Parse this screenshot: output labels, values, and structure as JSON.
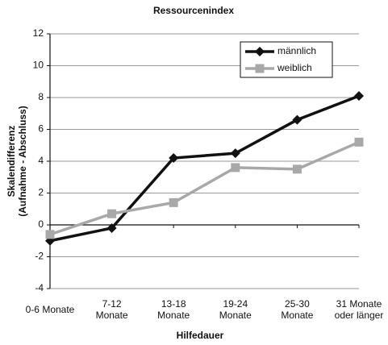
{
  "chart_data": {
    "type": "line",
    "title": "Ressourcenindex",
    "x_label": "Hilfedauer",
    "y_label": "Skalendifferenz\n(Aufnahme - Abschluss)",
    "categories": [
      "0-6 Monate",
      "7-12\nMonate",
      "13-18\nMonate",
      "19-24\nMonate",
      "25-30\nMonate",
      "31 Monate\noder länger"
    ],
    "series": [
      {
        "name": "männlich",
        "color": "#111111",
        "marker": "diamond",
        "values": [
          -1.0,
          -0.2,
          4.2,
          4.5,
          6.6,
          8.1
        ]
      },
      {
        "name": "weiblich",
        "color": "#a8a8a8",
        "marker": "square",
        "values": [
          -0.6,
          0.7,
          1.4,
          3.6,
          3.5,
          5.2
        ]
      }
    ],
    "ylim": [
      -4,
      12
    ],
    "yticks": [
      -4,
      -2,
      0,
      2,
      4,
      6,
      8,
      10,
      12
    ],
    "grid": true,
    "legend": "top-right"
  }
}
